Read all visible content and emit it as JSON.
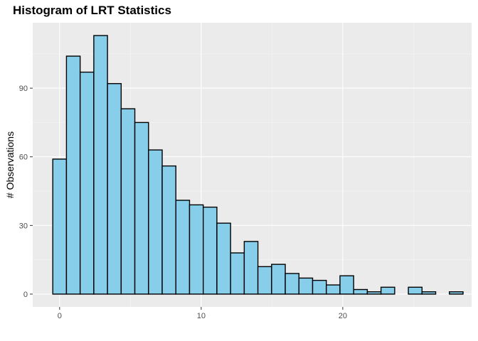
{
  "chart_data": {
    "type": "bar",
    "title": "Histogram of LRT Statistics",
    "xlabel": "",
    "ylabel": "# Observations",
    "x_ticks": [
      0,
      10,
      20
    ],
    "y_ticks": [
      0,
      30,
      60,
      90
    ],
    "xlim": [
      -1.9,
      29.1
    ],
    "ylim": [
      -5.6,
      118.6
    ],
    "bin_width": 0.966,
    "bin_centers": [
      0,
      0.966,
      1.932,
      2.898,
      3.864,
      4.83,
      5.796,
      6.762,
      7.728,
      8.694,
      9.66,
      10.626,
      11.592,
      12.558,
      13.524,
      14.49,
      15.456,
      16.422,
      17.388,
      18.354,
      19.32,
      20.286,
      21.252,
      22.218,
      23.184,
      24.15,
      25.116,
      26.082,
      27.048,
      28.014
    ],
    "values": [
      59,
      104,
      97,
      113,
      92,
      81,
      75,
      63,
      56,
      41,
      39,
      38,
      31,
      18,
      23,
      12,
      13,
      9,
      7,
      6,
      4,
      8,
      2,
      1,
      3,
      0,
      3,
      1,
      0,
      1
    ],
    "grid": true,
    "colors": {
      "bar_fill": "#87CEEB",
      "bar_stroke": "#000000",
      "panel_bg": "#EBEBEB",
      "grid_major": "#FFFFFF",
      "grid_minor": "#F5F5F5"
    }
  }
}
